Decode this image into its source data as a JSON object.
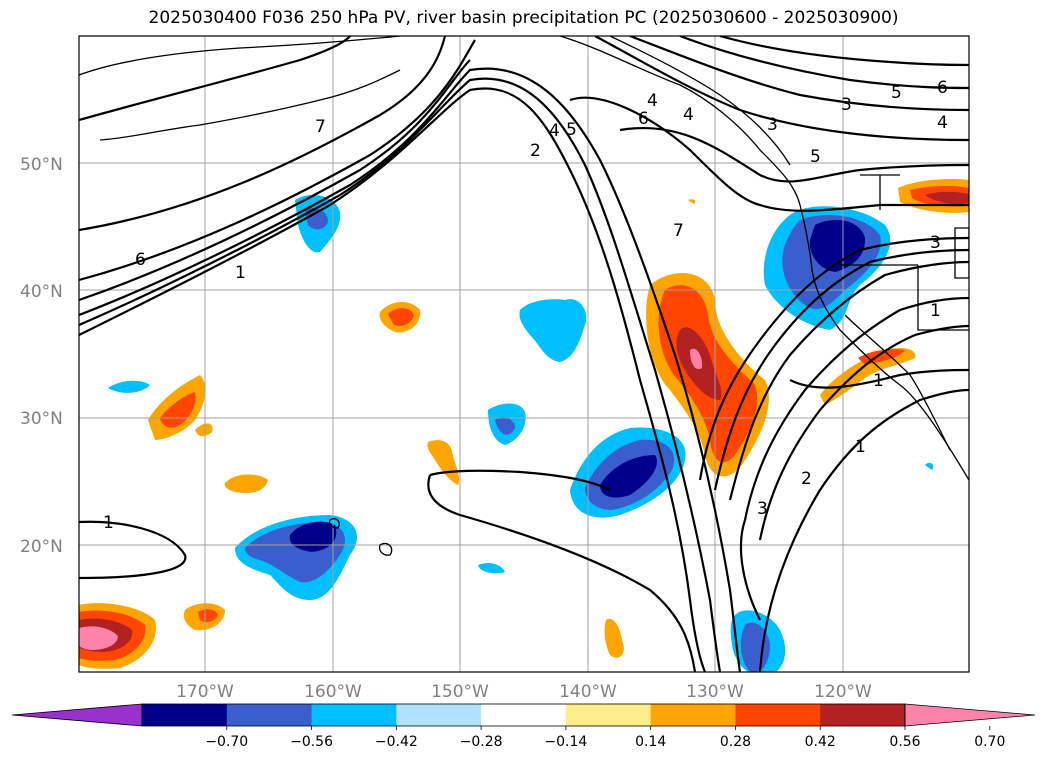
{
  "title": "2025030400 F036 250 hPa PV, river basin precipitation PC (2025030600 - 2025030900)",
  "map": {
    "lat_labels": [
      "50°N",
      "40°N",
      "30°N",
      "20°N"
    ],
    "lon_labels": [
      "170°W",
      "160°W",
      "150°W",
      "140°W",
      "130°W",
      "120°W"
    ],
    "contour_labels": [
      "7",
      "6",
      "1",
      "2",
      "4",
      "5",
      "6",
      "7",
      "4",
      "3",
      "4",
      "3",
      "5",
      "6",
      "4",
      "5",
      "3",
      "1",
      "1",
      "1",
      "2",
      "3",
      "1"
    ],
    "pv_contour_levels": [
      1,
      2,
      3,
      4,
      5,
      6,
      7
    ]
  },
  "colorbar": {
    "tick_labels": [
      "−0.70",
      "−0.56",
      "−0.42",
      "−0.28",
      "−0.14",
      "0.14",
      "0.28",
      "0.42",
      "0.56",
      "0.70"
    ],
    "colors": [
      "#9932cc",
      "#00008b",
      "#3a5fcd",
      "#00bfff",
      "#b0e2ff",
      "#ffffff",
      "#ffec8b",
      "#ffa500",
      "#ff4500",
      "#b22222",
      "#ff82ab"
    ]
  }
}
